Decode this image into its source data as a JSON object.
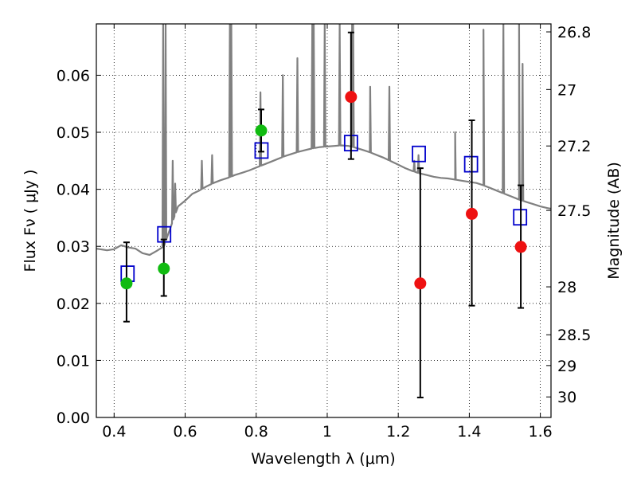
{
  "chart_data": {
    "type": "scatter",
    "xlabel": "Wavelength  λ (μm)",
    "ylabel": "Flux  Fν  ( μJy )",
    "y2label": "Magnitude (AB)",
    "xlim": [
      0.35,
      1.63
    ],
    "ylim": [
      0.0,
      0.069
    ],
    "grid": true,
    "x_ticks": [
      "0.4",
      "0.6",
      "0.8",
      "1",
      "1.2",
      "1.4",
      "1.6"
    ],
    "x_tick_values": [
      0.4,
      0.6,
      0.8,
      1.0,
      1.2,
      1.4,
      1.6
    ],
    "y_ticks": [
      "0.00",
      "0.01",
      "0.02",
      "0.03",
      "0.04",
      "0.05",
      "0.06"
    ],
    "y_tick_values": [
      0.0,
      0.01,
      0.02,
      0.03,
      0.04,
      0.05,
      0.06
    ],
    "mag_ticks": [
      {
        "label": "26.8",
        "flux": 0.0676
      },
      {
        "label": "27",
        "flux": 0.0575
      },
      {
        "label": "27.2",
        "flux": 0.0476
      },
      {
        "label": "27.5",
        "flux": 0.0363
      },
      {
        "label": "28",
        "flux": 0.0229
      },
      {
        "label": "28.5",
        "flux": 0.0145
      },
      {
        "label": "29",
        "flux": 0.0091
      },
      {
        "label": "30",
        "flux": 0.0036
      }
    ],
    "series": [
      {
        "style": "line",
        "color": "#808080",
        "points": [
          [
            0.35,
            0.0296
          ],
          [
            0.38,
            0.0293
          ],
          [
            0.4,
            0.0295
          ],
          [
            0.42,
            0.0302
          ],
          [
            0.44,
            0.0298
          ],
          [
            0.46,
            0.0296
          ],
          [
            0.48,
            0.0288
          ],
          [
            0.5,
            0.0285
          ],
          [
            0.52,
            0.0292
          ],
          [
            0.54,
            0.03
          ],
          [
            0.56,
            0.0335
          ],
          [
            0.58,
            0.037
          ],
          [
            0.6,
            0.038
          ],
          [
            0.62,
            0.0392
          ],
          [
            0.64,
            0.0398
          ],
          [
            0.66,
            0.0405
          ],
          [
            0.68,
            0.0411
          ],
          [
            0.7,
            0.0416
          ],
          [
            0.72,
            0.042
          ],
          [
            0.74,
            0.0425
          ],
          [
            0.76,
            0.0429
          ],
          [
            0.78,
            0.0433
          ],
          [
            0.8,
            0.0438
          ],
          [
            0.82,
            0.0443
          ],
          [
            0.84,
            0.0448
          ],
          [
            0.86,
            0.0453
          ],
          [
            0.88,
            0.0458
          ],
          [
            0.9,
            0.0462
          ],
          [
            0.92,
            0.0466
          ],
          [
            0.94,
            0.0469
          ],
          [
            0.96,
            0.0472
          ],
          [
            0.98,
            0.0474
          ],
          [
            1.0,
            0.0475
          ],
          [
            1.02,
            0.0476
          ],
          [
            1.04,
            0.0477
          ],
          [
            1.06,
            0.0476
          ],
          [
            1.08,
            0.0473
          ],
          [
            1.1,
            0.0469
          ],
          [
            1.12,
            0.0465
          ],
          [
            1.14,
            0.046
          ],
          [
            1.16,
            0.0455
          ],
          [
            1.18,
            0.0449
          ],
          [
            1.2,
            0.0443
          ],
          [
            1.22,
            0.0437
          ],
          [
            1.24,
            0.0432
          ],
          [
            1.26,
            0.0428
          ],
          [
            1.28,
            0.0425
          ],
          [
            1.3,
            0.0422
          ],
          [
            1.32,
            0.042
          ],
          [
            1.34,
            0.0419
          ],
          [
            1.36,
            0.0417
          ],
          [
            1.38,
            0.0415
          ],
          [
            1.4,
            0.0413
          ],
          [
            1.42,
            0.0411
          ],
          [
            1.44,
            0.0407
          ],
          [
            1.46,
            0.0402
          ],
          [
            1.48,
            0.0397
          ],
          [
            1.5,
            0.0392
          ],
          [
            1.52,
            0.0387
          ],
          [
            1.54,
            0.0382
          ],
          [
            1.56,
            0.0378
          ],
          [
            1.58,
            0.0374
          ],
          [
            1.6,
            0.037
          ],
          [
            1.62,
            0.0367
          ],
          [
            1.63,
            0.0366
          ]
        ],
        "emission_lines": [
          {
            "x": 0.538,
            "peak": 0.069
          },
          {
            "x": 0.545,
            "peak": 0.069
          },
          {
            "x": 0.565,
            "peak": 0.045
          },
          {
            "x": 0.572,
            "peak": 0.041
          },
          {
            "x": 0.647,
            "peak": 0.045
          },
          {
            "x": 0.676,
            "peak": 0.046
          },
          {
            "x": 0.726,
            "peak": 0.069
          },
          {
            "x": 0.73,
            "peak": 0.069
          },
          {
            "x": 0.812,
            "peak": 0.057
          },
          {
            "x": 0.875,
            "peak": 0.06
          },
          {
            "x": 0.916,
            "peak": 0.063
          },
          {
            "x": 0.958,
            "peak": 0.069
          },
          {
            "x": 0.962,
            "peak": 0.069
          },
          {
            "x": 0.993,
            "peak": 0.069
          },
          {
            "x": 1.035,
            "peak": 0.069
          },
          {
            "x": 1.07,
            "peak": 0.069
          },
          {
            "x": 1.073,
            "peak": 0.069
          },
          {
            "x": 1.121,
            "peak": 0.058
          },
          {
            "x": 1.175,
            "peak": 0.058
          },
          {
            "x": 1.245,
            "peak": 0.045
          },
          {
            "x": 1.257,
            "peak": 0.046
          },
          {
            "x": 1.36,
            "peak": 0.05
          },
          {
            "x": 1.44,
            "peak": 0.068
          },
          {
            "x": 1.496,
            "peak": 0.069
          },
          {
            "x": 1.54,
            "peak": 0.069
          },
          {
            "x": 1.55,
            "peak": 0.062
          }
        ]
      },
      {
        "style": "open-square",
        "color": "#0000cc",
        "points": [
          [
            0.438,
            0.0252
          ],
          [
            0.541,
            0.0321
          ],
          [
            0.815,
            0.0468
          ],
          [
            1.067,
            0.0481
          ],
          [
            1.258,
            0.0462
          ],
          [
            1.405,
            0.0444
          ],
          [
            1.543,
            0.0351
          ]
        ]
      },
      {
        "style": "circle",
        "color": "#11bb11",
        "points": [
          [
            0.435,
            0.0235
          ],
          [
            0.54,
            0.0261
          ],
          [
            0.814,
            0.0503
          ]
        ],
        "errors": [
          [
            0.0168,
            0.0307
          ],
          [
            0.0213,
            0.0312
          ],
          [
            0.0466,
            0.054
          ]
        ]
      },
      {
        "style": "circle",
        "color": "#ee1111",
        "points": [
          [
            1.067,
            0.0562
          ],
          [
            1.262,
            0.0235
          ],
          [
            1.407,
            0.0357
          ],
          [
            1.545,
            0.0299
          ]
        ],
        "errors": [
          [
            0.0453,
            0.0675
          ],
          [
            0.0035,
            0.0437
          ],
          [
            0.0196,
            0.0521
          ],
          [
            0.0192,
            0.0407
          ]
        ]
      }
    ]
  }
}
